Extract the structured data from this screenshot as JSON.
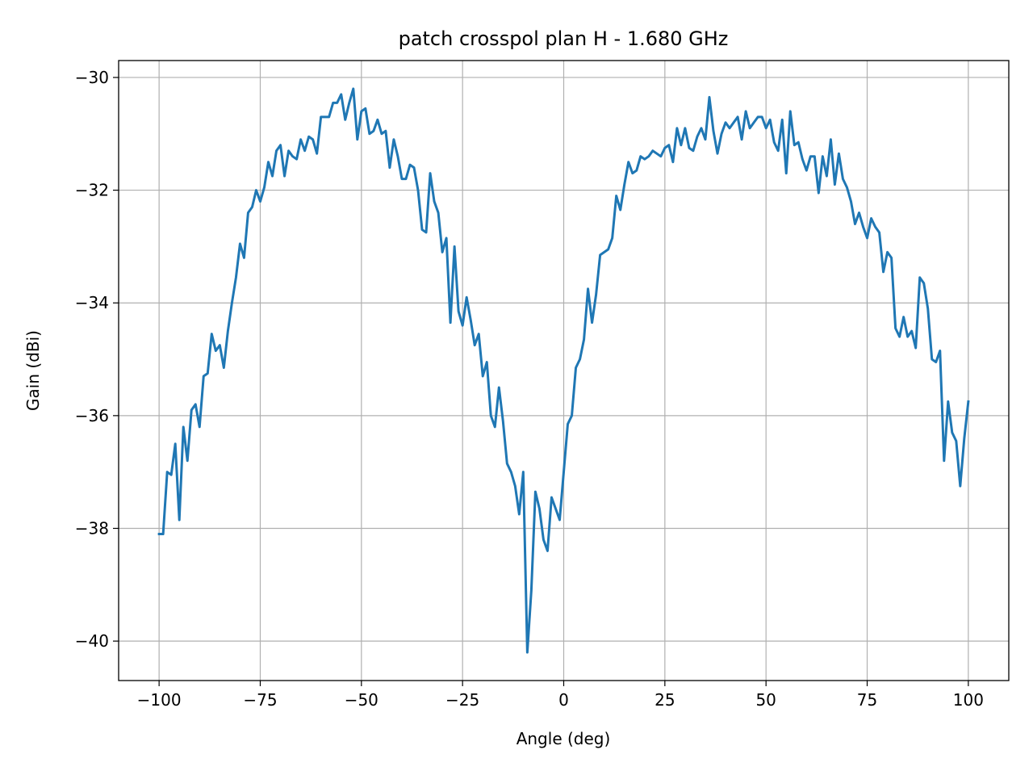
{
  "chart_data": {
    "type": "line",
    "title": "patch crosspol plan H - 1.680 GHz",
    "xlabel": "Angle (deg)",
    "ylabel": "Gain (dBi)",
    "xlim": [
      -110,
      110
    ],
    "ylim": [
      -40.7,
      -29.7
    ],
    "grid": true,
    "xticks": [
      -100,
      -75,
      -50,
      -25,
      0,
      25,
      50,
      75,
      100
    ],
    "xtick_labels": [
      "−100",
      "−75",
      "−50",
      "−25",
      "0",
      "25",
      "50",
      "75",
      "100"
    ],
    "yticks": [
      -30,
      -32,
      -34,
      -36,
      -38,
      -40
    ],
    "ytick_labels": [
      "−30",
      "−32",
      "−34",
      "−36",
      "−38",
      "−40"
    ],
    "series": [
      {
        "color": "#1f77b4",
        "x": [
          -100,
          -99,
          -98,
          -97,
          -96,
          -95,
          -94,
          -93,
          -92,
          -91,
          -90,
          -89,
          -88,
          -87,
          -86,
          -85,
          -84,
          -83,
          -82,
          -81,
          -80,
          -79,
          -78,
          -77,
          -76,
          -75,
          -74,
          -73,
          -72,
          -71,
          -70,
          -69,
          -68,
          -67,
          -66,
          -65,
          -64,
          -63,
          -62,
          -61,
          -60,
          -59,
          -58,
          -57,
          -56,
          -55,
          -54,
          -53,
          -52,
          -51,
          -50,
          -49,
          -48,
          -47,
          -46,
          -45,
          -44,
          -43,
          -42,
          -41,
          -40,
          -39,
          -38,
          -37,
          -36,
          -35,
          -34,
          -33,
          -32,
          -31,
          -30,
          -29,
          -28,
          -27,
          -26,
          -25,
          -24,
          -23,
          -22,
          -21,
          -20,
          -19,
          -18,
          -17,
          -16,
          -15,
          -14,
          -13,
          -12,
          -11,
          -10,
          -9,
          -8,
          -7,
          -6,
          -5,
          -4,
          -3,
          -2,
          -1,
          0,
          1,
          2,
          3,
          4,
          5,
          6,
          7,
          8,
          9,
          10,
          11,
          12,
          13,
          14,
          15,
          16,
          17,
          18,
          19,
          20,
          21,
          22,
          23,
          24,
          25,
          26,
          27,
          28,
          29,
          30,
          31,
          32,
          33,
          34,
          35,
          36,
          37,
          38,
          39,
          40,
          41,
          42,
          43,
          44,
          45,
          46,
          47,
          48,
          49,
          50,
          51,
          52,
          53,
          54,
          55,
          56,
          57,
          58,
          59,
          60,
          61,
          62,
          63,
          64,
          65,
          66,
          67,
          68,
          69,
          70,
          71,
          72,
          73,
          74,
          75,
          76,
          77,
          78,
          79,
          80,
          81,
          82,
          83,
          84,
          85,
          86,
          87,
          88,
          89,
          90,
          91,
          92,
          93,
          94,
          95,
          96,
          97,
          98,
          99,
          100
        ],
        "y": [
          -38.1,
          -38.1,
          -37.0,
          -37.05,
          -36.5,
          -37.85,
          -36.2,
          -36.8,
          -35.9,
          -35.8,
          -36.2,
          -35.3,
          -35.25,
          -34.55,
          -34.85,
          -34.75,
          -35.15,
          -34.5,
          -34.0,
          -33.55,
          -32.95,
          -33.2,
          -32.4,
          -32.3,
          -32.0,
          -32.2,
          -31.95,
          -31.5,
          -31.75,
          -31.3,
          -31.2,
          -31.75,
          -31.3,
          -31.4,
          -31.45,
          -31.1,
          -31.3,
          -31.05,
          -31.1,
          -31.35,
          -30.7,
          -30.7,
          -30.7,
          -30.45,
          -30.45,
          -30.3,
          -30.75,
          -30.45,
          -30.2,
          -31.1,
          -30.6,
          -30.55,
          -31.0,
          -30.95,
          -30.75,
          -31.0,
          -30.95,
          -31.6,
          -31.1,
          -31.4,
          -31.8,
          -31.8,
          -31.55,
          -31.6,
          -32.0,
          -32.7,
          -32.75,
          -31.7,
          -32.2,
          -32.4,
          -33.1,
          -32.85,
          -34.35,
          -33.0,
          -34.15,
          -34.4,
          -33.9,
          -34.3,
          -34.75,
          -34.55,
          -35.3,
          -35.05,
          -36.0,
          -36.2,
          -35.5,
          -36.1,
          -36.85,
          -37.0,
          -37.25,
          -37.75,
          -37.0,
          -40.2,
          -39.1,
          -37.35,
          -37.65,
          -38.2,
          -38.4,
          -37.45,
          -37.65,
          -37.85,
          -37.0,
          -36.15,
          -36.0,
          -35.15,
          -35.0,
          -34.65,
          -33.75,
          -34.35,
          -33.85,
          -33.15,
          -33.1,
          -33.05,
          -32.85,
          -32.1,
          -32.35,
          -31.9,
          -31.5,
          -31.7,
          -31.65,
          -31.4,
          -31.45,
          -31.4,
          -31.3,
          -31.35,
          -31.4,
          -31.25,
          -31.2,
          -31.5,
          -30.9,
          -31.2,
          -30.9,
          -31.25,
          -31.3,
          -31.05,
          -30.9,
          -31.1,
          -30.35,
          -30.95,
          -31.35,
          -31.0,
          -30.8,
          -30.9,
          -30.8,
          -30.7,
          -31.1,
          -30.6,
          -30.9,
          -30.8,
          -30.7,
          -30.7,
          -30.9,
          -30.75,
          -31.15,
          -31.3,
          -30.75,
          -31.7,
          -30.6,
          -31.2,
          -31.15,
          -31.45,
          -31.65,
          -31.4,
          -31.4,
          -32.05,
          -31.4,
          -31.75,
          -31.1,
          -31.9,
          -31.35,
          -31.8,
          -31.95,
          -32.2,
          -32.6,
          -32.4,
          -32.65,
          -32.85,
          -32.5,
          -32.65,
          -32.75,
          -33.45,
          -33.1,
          -33.2,
          -34.45,
          -34.6,
          -34.25,
          -34.6,
          -34.5,
          -34.8,
          -33.55,
          -33.65,
          -34.1,
          -35.0,
          -35.05,
          -34.85,
          -36.8,
          -35.75,
          -36.3,
          -36.45,
          -37.25,
          -36.4,
          -35.75
        ]
      }
    ]
  }
}
